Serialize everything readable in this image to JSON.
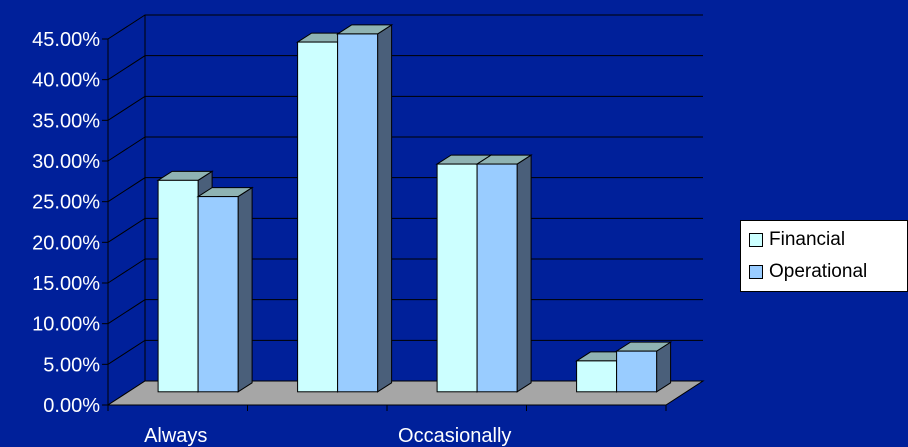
{
  "chart_data": {
    "type": "bar",
    "categories": [
      "Always",
      "",
      "Occasionally",
      ""
    ],
    "series": [
      {
        "name": "Financial",
        "values": [
          26.0,
          43.0,
          28.0,
          3.8
        ]
      },
      {
        "name": "Operational",
        "values": [
          24.0,
          44.0,
          28.0,
          5.0
        ]
      }
    ],
    "ylim": [
      0,
      45
    ],
    "y_ticks": [
      "0.00%",
      "5.00%",
      "10.00%",
      "15.00%",
      "20.00%",
      "25.00%",
      "30.00%",
      "35.00%",
      "40.00%",
      "45.00%"
    ],
    "grid": true,
    "legend_position": "right",
    "colors": {
      "background": "#00209a",
      "Financial": "#ccffff",
      "Operational": "#99ccff",
      "floor": "#a6a6a6",
      "side": "#4a5f7a"
    }
  }
}
